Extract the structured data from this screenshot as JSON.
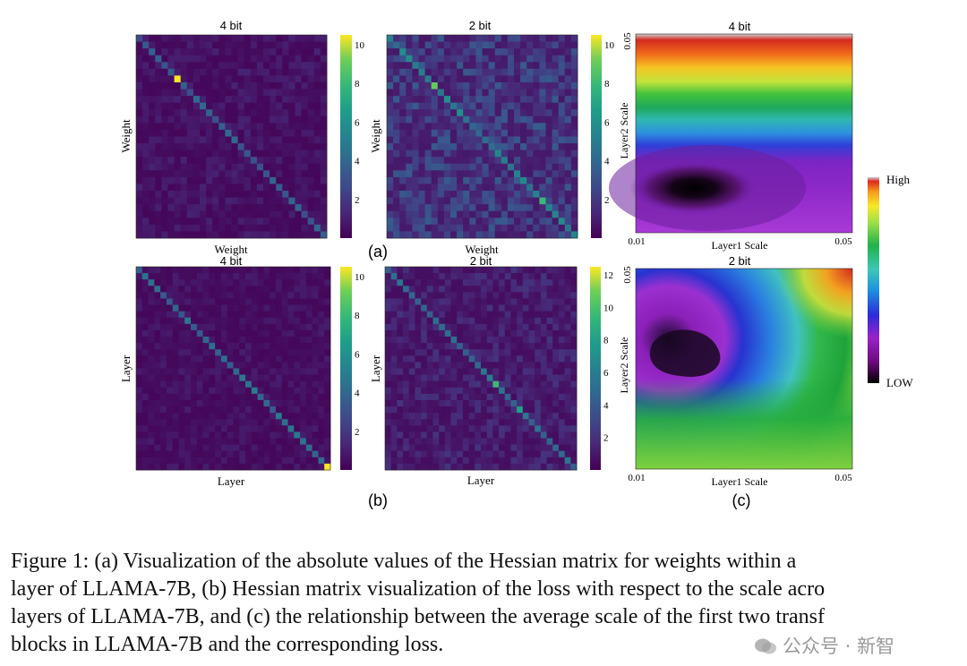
{
  "figure": {
    "panel_labels": [
      "(a)",
      "(b)",
      "(c)"
    ],
    "colorbar_c": {
      "high": "High",
      "low": "LOW"
    }
  },
  "chart_data": [
    {
      "type": "heatmap",
      "panel": "a",
      "title": "4 bit",
      "xlabel": "Weight",
      "ylabel": "Weight",
      "size": 30,
      "diag_value": 3.5,
      "diag_peaks": [
        [
          6,
          10.5
        ],
        [
          27,
          3.2
        ]
      ],
      "background_range": [
        0.2,
        1.2
      ],
      "colorbar_ticks": [
        "2",
        "4",
        "6",
        "8",
        "10"
      ],
      "colorbar_range": [
        0,
        10.5
      ]
    },
    {
      "type": "heatmap",
      "panel": "a",
      "title": "2 bit",
      "xlabel": "Weight",
      "ylabel": "Weight",
      "size": 30,
      "diag_value": 5.0,
      "diag_peaks": [
        [
          7,
          9
        ],
        [
          24,
          8
        ]
      ],
      "background_range": [
        0.8,
        3.5
      ],
      "colorbar_ticks": [
        "2",
        "4",
        "6",
        "8",
        "10"
      ],
      "colorbar_range": [
        0,
        10.5
      ]
    },
    {
      "type": "heatmap",
      "panel": "b",
      "title": "4 bit",
      "xlabel": "Layer",
      "ylabel": "Layer",
      "size": 32,
      "diag_value": 4.0,
      "diag_peaks": [
        [
          19,
          5
        ],
        [
          31,
          10.5
        ]
      ],
      "background_range": [
        0.2,
        1.0
      ],
      "colorbar_ticks": [
        "2",
        "4",
        "6",
        "8",
        "10"
      ],
      "colorbar_range": [
        0,
        10.5
      ]
    },
    {
      "type": "heatmap",
      "panel": "b",
      "title": "2 bit",
      "xlabel": "Layer",
      "ylabel": "Layer",
      "size": 32,
      "diag_value": 5.0,
      "diag_peaks": [
        [
          18,
          9.5
        ],
        [
          22,
          8
        ]
      ],
      "background_range": [
        0.5,
        2.2
      ],
      "colorbar_ticks": [
        "2",
        "4",
        "6",
        "8",
        "10",
        "12"
      ],
      "colorbar_range": [
        0,
        12.5
      ]
    },
    {
      "type": "heatmap",
      "panel": "c",
      "title": "4 bit",
      "xlabel": "Layer1 Scale",
      "ylabel": "Layer2 Scale",
      "x_ticks": [
        "0.01",
        "0.05"
      ],
      "y_ticks": [
        "0.05"
      ],
      "colormap": "rainbow",
      "colorbar_range_labels": [
        "LOW",
        "High"
      ]
    },
    {
      "type": "heatmap",
      "panel": "c",
      "title": "2 bit",
      "xlabel": "Layer1 Scale",
      "ylabel": "Layer2 Scale",
      "x_ticks": [
        "0.01",
        "0.05"
      ],
      "y_ticks": [
        "0.05"
      ],
      "colormap": "rainbow",
      "colorbar_range_labels": [
        "LOW",
        "High"
      ]
    }
  ],
  "caption": {
    "lines": [
      "Figure 1: (a) Visualization of the absolute values of the Hessian matrix for weights within a",
      "layer of LLAMA-7B, (b) Hessian matrix visualization of the loss with respect to the scale acro",
      "layers of LLAMA-7B, and (c) the relationship between the average scale of the first two transf",
      "blocks in LLAMA-7B and the corresponding loss."
    ]
  },
  "watermark": {
    "text": "公众号 · 新智"
  }
}
